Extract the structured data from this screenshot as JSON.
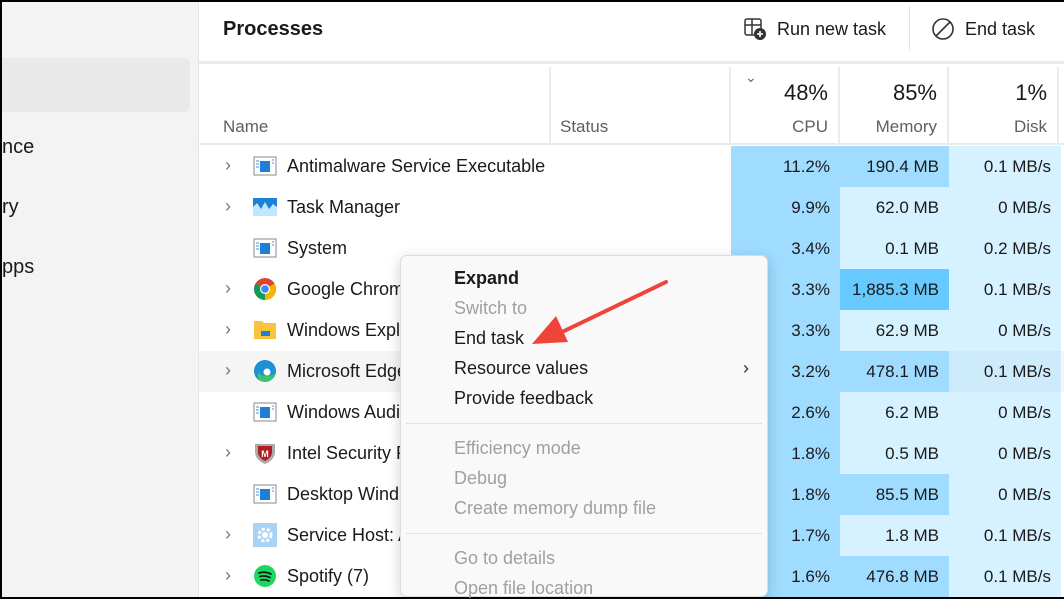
{
  "sidebar": {
    "items": [
      {
        "label": "nce"
      },
      {
        "label": "ry"
      },
      {
        "label": "pps"
      }
    ]
  },
  "header": {
    "title": "Processes",
    "run_new_task": "Run new task",
    "end_task": "End task"
  },
  "columns": {
    "name": "Name",
    "status": "Status",
    "cpu": {
      "label": "CPU",
      "total": "48%"
    },
    "memory": {
      "label": "Memory",
      "total": "85%"
    },
    "disk": {
      "label": "Disk",
      "total": "1%"
    }
  },
  "colors": {
    "cpu": "#9fdcff",
    "mem_low": "#d6f1ff",
    "mem_mid": "#9fdcff",
    "mem_high": "#66c9ff",
    "disk": "#d6f1ff",
    "arrow": "#f0433a"
  },
  "processes": [
    {
      "name": "Antimalware Service Executable",
      "icon": "app-window",
      "expandable": true,
      "cpu": "11.2%",
      "memory": "190.4 MB",
      "mem_level": "mid",
      "disk": "0.1 MB/s"
    },
    {
      "name": "Task Manager",
      "icon": "task-manager",
      "expandable": true,
      "cpu": "9.9%",
      "memory": "62.0 MB",
      "mem_level": "low",
      "disk": "0 MB/s"
    },
    {
      "name": "System",
      "icon": "app-window",
      "expandable": false,
      "cpu": "3.4%",
      "memory": "0.1 MB",
      "mem_level": "low",
      "disk": "0.2 MB/s"
    },
    {
      "name": "Google Chrom",
      "icon": "chrome",
      "expandable": true,
      "cpu": "3.3%",
      "memory": "1,885.3 MB",
      "mem_level": "high",
      "disk": "0.1 MB/s"
    },
    {
      "name": "Windows Explo",
      "icon": "folder",
      "expandable": true,
      "cpu": "3.3%",
      "memory": "62.9 MB",
      "mem_level": "low",
      "disk": "0 MB/s"
    },
    {
      "name": "Microsoft Edge",
      "icon": "edge",
      "expandable": true,
      "cpu": "3.2%",
      "memory": "478.1 MB",
      "mem_level": "mid",
      "disk": "0.1 MB/s",
      "hover": true
    },
    {
      "name": "Windows Audi",
      "icon": "app-window",
      "expandable": false,
      "cpu": "2.6%",
      "memory": "6.2 MB",
      "mem_level": "low",
      "disk": "0 MB/s"
    },
    {
      "name": "Intel Security P",
      "icon": "mcafee-shield",
      "expandable": true,
      "cpu": "1.8%",
      "memory": "0.5 MB",
      "mem_level": "low",
      "disk": "0 MB/s"
    },
    {
      "name": "Desktop Wind",
      "icon": "app-window",
      "expandable": false,
      "cpu": "1.8%",
      "memory": "85.5 MB",
      "mem_level": "mid",
      "disk": "0 MB/s"
    },
    {
      "name": "Service Host: A",
      "icon": "gear",
      "expandable": true,
      "cpu": "1.7%",
      "memory": "1.8 MB",
      "mem_level": "low",
      "disk": "0.1 MB/s"
    },
    {
      "name": "Spotify (7)",
      "icon": "spotify",
      "expandable": true,
      "cpu": "1.6%",
      "memory": "476.8 MB",
      "mem_level": "mid",
      "disk": "0.1 MB/s"
    }
  ],
  "context_menu": {
    "items": [
      {
        "label": "Expand",
        "bold": true,
        "disabled": false
      },
      {
        "label": "Switch to",
        "disabled": true
      },
      {
        "label": "End task",
        "disabled": false
      },
      {
        "label": "Resource values",
        "disabled": false,
        "submenu": true
      },
      {
        "label": "Provide feedback",
        "disabled": false
      },
      {
        "separator": true
      },
      {
        "label": "Efficiency mode",
        "disabled": true
      },
      {
        "label": "Debug",
        "disabled": true
      },
      {
        "label": "Create memory dump file",
        "disabled": true
      },
      {
        "separator": true
      },
      {
        "label": "Go to details",
        "disabled": true
      },
      {
        "label": "Open file location",
        "disabled": true
      }
    ]
  }
}
